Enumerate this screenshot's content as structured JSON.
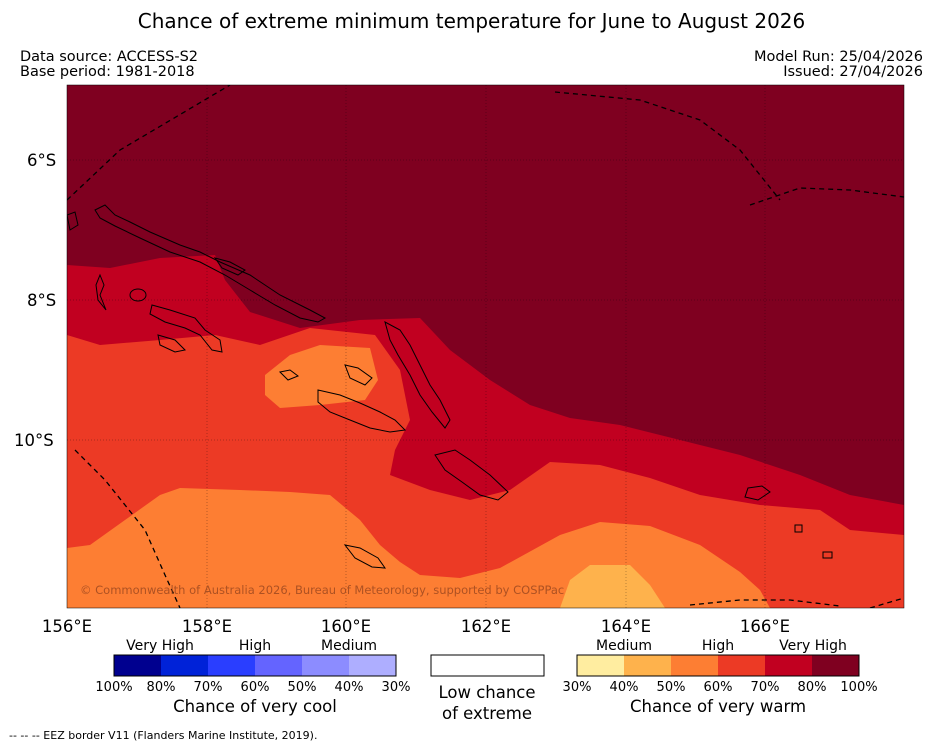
{
  "title": "Chance of extreme minimum temperature for June to August 2026",
  "meta": {
    "data_source": "Data source: ACCESS-S2",
    "base_period": "Base period: 1981-2018",
    "model_run": "Model Run: 25/04/2026",
    "issued": "Issued: 27/04/2026"
  },
  "map": {
    "lat_labels": [
      "6°S",
      "8°S",
      "10°S"
    ],
    "lon_labels": [
      "156°E",
      "158°E",
      "160°E",
      "162°E",
      "164°E",
      "166°E"
    ],
    "copyright": "© Commonwealth of Australia 2026, Bureau of Meteorology, supported by COSPPac"
  },
  "legend": {
    "cool": {
      "categories": [
        "Very High",
        "High",
        "Medium"
      ],
      "ticks": [
        "100%",
        "80%",
        "70%",
        "60%",
        "50%",
        "40%",
        "30%"
      ],
      "colors": [
        "#00008f",
        "#0022d8",
        "#2a3eff",
        "#6464ff",
        "#8c8cff",
        "#aeaeff"
      ],
      "title": "Chance of very cool"
    },
    "neutral": {
      "title_line1": "Low chance",
      "title_line2": "of extreme"
    },
    "warm": {
      "categories": [
        "Medium",
        "High",
        "Very High"
      ],
      "ticks": [
        "30%",
        "40%",
        "50%",
        "60%",
        "70%",
        "80%",
        "100%"
      ],
      "colors": [
        "#ffeda0",
        "#feb24c",
        "#fd7e33",
        "#ec3a25",
        "#c10020",
        "#7f0020"
      ],
      "title": "Chance of very warm"
    }
  },
  "footnote": "-- -- -- EEZ border V11 (Flanders Marine Institute, 2019)."
}
